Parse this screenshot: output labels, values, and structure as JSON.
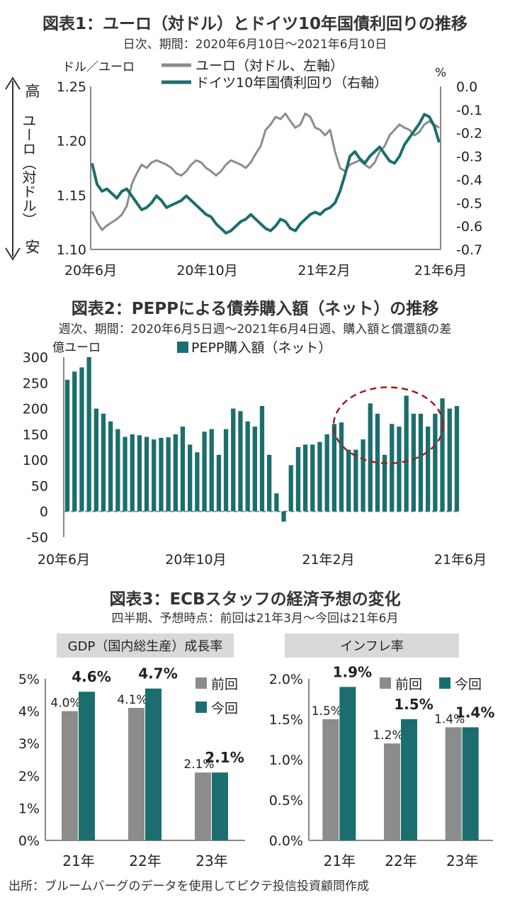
{
  "fig1": {
    "title": "図表1：ユーロ（対ドル）とドイツ10年国債利回りの推移",
    "subtitle": "日次、期間：2020年6月10日～2021年6月10日",
    "left_unit": "ドル／ユーロ",
    "right_unit": "%",
    "arrow_high": "高",
    "arrow_mid": "ユーロ（対ドル）",
    "arrow_low": "安",
    "left_ticks": [
      "1.25",
      "1.20",
      "1.15",
      "1.10"
    ],
    "right_ticks": [
      "0.0",
      "-0.1",
      "-0.2",
      "-0.3",
      "-0.4",
      "-0.5",
      "-0.6",
      "-0.7"
    ],
    "x_ticks": [
      "20年6月",
      "20年10月",
      "21年2月",
      "21年6月"
    ],
    "colors": {
      "euro": "#8c8c8c",
      "bund": "#1c6e6e",
      "axis": "#888888"
    }
  },
  "fig2": {
    "title": "図表2：PEPPによる債券購入額（ネット）の推移",
    "subtitle": "週次、期間：2020年6月5日週～2021年6月4日週、購入額と償還額の差",
    "unit": "億ユーロ",
    "y_ticks": [
      "300",
      "250",
      "200",
      "150",
      "100",
      "50",
      "0",
      "-50"
    ],
    "x_ticks": [
      "20年6月",
      "20年10月",
      "21年2月",
      "21年6月"
    ],
    "colors": {
      "bar": "#1c6e6e",
      "ellipse": "#a31c1c"
    }
  },
  "fig3": {
    "title": "図表3：ECBスタッフの経済予想の変化",
    "subtitle": "四半期、予想時点：前回は21年3月～今回は21年6月",
    "left_header": "GDP（国内総生産）成長率",
    "right_header": "インフレ率",
    "colors": {
      "prev": "#8c8c8c",
      "curr": "#1c6e6e",
      "header_bg": "#d9d9d9"
    }
  },
  "source": "出所：ブルームバーグのデータを使用してピクテ投信投資顧問作成",
  "chart_data": [
    {
      "type": "line",
      "x_range": [
        "2020-06-10",
        "2021-06-10"
      ],
      "y_range_left": [
        1.1,
        1.25
      ],
      "y_range_right": [
        -0.7,
        0.0
      ],
      "series": [
        {
          "name": "ユーロ（対ドル、左軸）",
          "axis": "left",
          "values": [
            1.135,
            1.125,
            1.118,
            1.122,
            1.125,
            1.128,
            1.132,
            1.14,
            1.16,
            1.17,
            1.178,
            1.175,
            1.18,
            1.182,
            1.18,
            1.178,
            1.175,
            1.17,
            1.168,
            1.172,
            1.178,
            1.182,
            1.18,
            1.175,
            1.172,
            1.168,
            1.172,
            1.178,
            1.182,
            1.18,
            1.178,
            1.175,
            1.18,
            1.188,
            1.195,
            1.21,
            1.215,
            1.222,
            1.22,
            1.225,
            1.218,
            1.212,
            1.215,
            1.225,
            1.222,
            1.212,
            1.21,
            1.205,
            1.21,
            1.19,
            1.175,
            1.172,
            1.178,
            1.18,
            1.182,
            1.178,
            1.175,
            1.18,
            1.19,
            1.195,
            1.205,
            1.21,
            1.215,
            1.212,
            1.21,
            1.205,
            1.208,
            1.215,
            1.218,
            1.215,
            1.212
          ]
        },
        {
          "name": "ドイツ10年国債利回り（右軸）",
          "axis": "right",
          "values": [
            -0.33,
            -0.42,
            -0.45,
            -0.44,
            -0.46,
            -0.48,
            -0.45,
            -0.44,
            -0.47,
            -0.5,
            -0.53,
            -0.52,
            -0.5,
            -0.47,
            -0.49,
            -0.52,
            -0.51,
            -0.5,
            -0.49,
            -0.47,
            -0.49,
            -0.51,
            -0.53,
            -0.55,
            -0.56,
            -0.59,
            -0.61,
            -0.63,
            -0.62,
            -0.6,
            -0.58,
            -0.57,
            -0.55,
            -0.57,
            -0.59,
            -0.61,
            -0.62,
            -0.6,
            -0.57,
            -0.58,
            -0.61,
            -0.62,
            -0.59,
            -0.57,
            -0.55,
            -0.54,
            -0.55,
            -0.53,
            -0.52,
            -0.5,
            -0.45,
            -0.38,
            -0.3,
            -0.28,
            -0.31,
            -0.33,
            -0.3,
            -0.28,
            -0.26,
            -0.29,
            -0.32,
            -0.33,
            -0.3,
            -0.25,
            -0.22,
            -0.19,
            -0.16,
            -0.12,
            -0.13,
            -0.17,
            -0.24
          ]
        }
      ],
      "xlabel": "",
      "ylabel_left": "ドル／ユーロ",
      "ylabel_right": "%",
      "legend": "top"
    },
    {
      "type": "bar",
      "ylim": [
        -50,
        300
      ],
      "series": [
        {
          "name": "PEPP購入額（ネット）",
          "values": [
            256,
            272,
            280,
            300,
            200,
            190,
            175,
            160,
            145,
            150,
            148,
            145,
            140,
            143,
            144,
            150,
            165,
            130,
            115,
            155,
            160,
            110,
            160,
            200,
            195,
            175,
            165,
            205,
            110,
            35,
            -20,
            90,
            125,
            130,
            130,
            135,
            150,
            170,
            173,
            120,
            120,
            140,
            210,
            190,
            110,
            170,
            165,
            225,
            190,
            190,
            165,
            190,
            220,
            200,
            205
          ]
        }
      ],
      "xlabel": "",
      "ylabel": "億ユーロ",
      "highlighted_ranges": [
        [
          38,
          51
        ],
        [
          56,
          64
        ]
      ]
    },
    {
      "type": "bar",
      "title": "GDP（国内総生産）成長率",
      "categories": [
        "21年",
        "22年",
        "23年"
      ],
      "series": [
        {
          "name": "前回",
          "values": [
            4.0,
            4.1,
            2.1
          ],
          "labels": [
            "4.0%",
            "4.1%",
            "2.1%"
          ]
        },
        {
          "name": "今回",
          "values": [
            4.6,
            4.7,
            2.1
          ],
          "labels": [
            "4.6%",
            "4.7%",
            "2.1%"
          ]
        }
      ],
      "ylim": [
        0,
        5
      ],
      "y_ticks": [
        "5%",
        "4%",
        "3%",
        "2%",
        "1%",
        "0%"
      ]
    },
    {
      "type": "bar",
      "title": "インフレ率",
      "categories": [
        "21年",
        "22年",
        "23年"
      ],
      "series": [
        {
          "name": "前回",
          "values": [
            1.5,
            1.2,
            1.4
          ],
          "labels": [
            "1.5%",
            "1.2%",
            "1.4%"
          ]
        },
        {
          "name": "今回",
          "values": [
            1.9,
            1.5,
            1.4
          ],
          "labels": [
            "1.9%",
            "1.5%",
            "1.4%"
          ]
        }
      ],
      "ylim": [
        0,
        2.0
      ],
      "y_ticks": [
        "2.0%",
        "1.5%",
        "1.0%",
        "0.5%",
        "0.0%"
      ]
    }
  ]
}
